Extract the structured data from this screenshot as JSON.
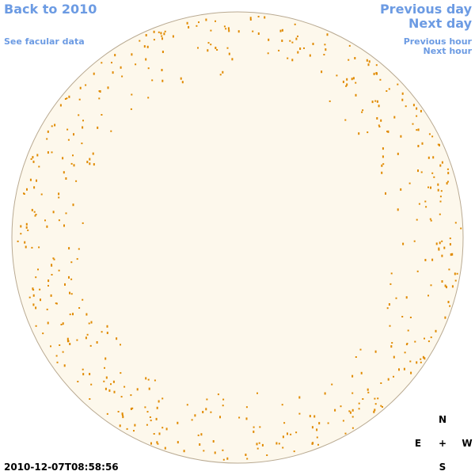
{
  "links": {
    "back": "Back to 2010",
    "facular": "See facular data",
    "previous_day": "Previous day",
    "next_day": "Next day",
    "previous_hour": "Previous hour",
    "next_hour": "Next hour"
  },
  "compass": {
    "north": "N",
    "east": "E",
    "center": "+",
    "west": "W",
    "south": "S"
  },
  "timestamp": "2010-12-07T08:58:56"
}
